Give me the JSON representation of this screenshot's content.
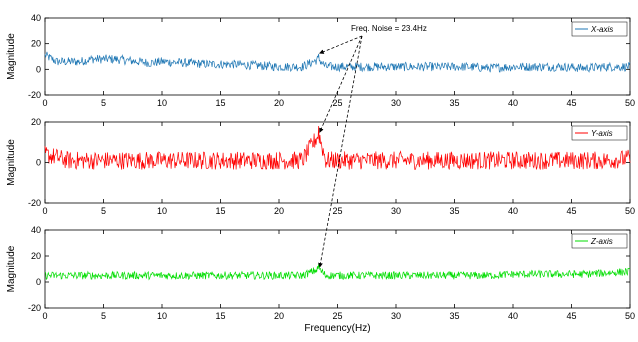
{
  "chart_data": [
    {
      "type": "line",
      "title": "",
      "xlabel": "",
      "ylabel": "Magnitude",
      "xlim": [
        0,
        50
      ],
      "ylim": [
        -20,
        40
      ],
      "xticks": [
        0,
        5,
        10,
        15,
        20,
        25,
        30,
        35,
        40,
        45,
        50
      ],
      "yticks": [
        -20,
        0,
        20,
        40
      ],
      "grid": false,
      "legend_position": "top-right",
      "series": [
        {
          "name": "X-axis",
          "color": "#1f77b4",
          "x": [
            0,
            1,
            2,
            3,
            4,
            5,
            6,
            7,
            8,
            9,
            10,
            12,
            14,
            16,
            18,
            20,
            22,
            23.4,
            24,
            26,
            28,
            30,
            32,
            34,
            36,
            38,
            40,
            42,
            44,
            46,
            48,
            50
          ],
          "y": [
            11,
            6,
            6,
            6,
            8,
            8,
            8,
            7,
            6,
            5,
            6,
            5,
            4,
            4,
            3,
            2,
            2,
            8,
            2,
            2,
            2,
            2,
            2,
            2,
            2,
            1,
            2,
            2,
            2,
            1,
            2,
            2
          ]
        }
      ]
    },
    {
      "type": "line",
      "title": "",
      "xlabel": "",
      "ylabel": "Magnitude",
      "xlim": [
        0,
        50
      ],
      "ylim": [
        -20,
        20
      ],
      "xticks": [
        0,
        5,
        10,
        15,
        20,
        25,
        30,
        35,
        40,
        45,
        50
      ],
      "yticks": [
        -20,
        0,
        20
      ],
      "grid": false,
      "legend_position": "top-right",
      "series": [
        {
          "name": "Y-axis",
          "color": "#ff0000",
          "x": [
            0,
            2,
            4,
            6,
            8,
            10,
            12,
            14,
            16,
            18,
            20,
            22,
            23.4,
            24,
            26,
            28,
            30,
            32,
            34,
            36,
            38,
            40,
            42,
            44,
            46,
            48,
            50
          ],
          "y": [
            4,
            1,
            1,
            1,
            1,
            1,
            1,
            1,
            1,
            1,
            1,
            1,
            14,
            1,
            1,
            1,
            1,
            1,
            1,
            1,
            1,
            1,
            1,
            1,
            1,
            1,
            2
          ]
        }
      ]
    },
    {
      "type": "line",
      "title": "",
      "xlabel": "Frequency(Hz)",
      "ylabel": "Magnitude",
      "xlim": [
        0,
        50
      ],
      "ylim": [
        -20,
        40
      ],
      "xticks": [
        0,
        5,
        10,
        15,
        20,
        25,
        30,
        35,
        40,
        45,
        50
      ],
      "yticks": [
        -20,
        0,
        20,
        40
      ],
      "grid": false,
      "legend_position": "top-right",
      "series": [
        {
          "name": "Z-axis",
          "color": "#00dd00",
          "x": [
            0,
            2,
            4,
            6,
            8,
            10,
            12,
            14,
            16,
            18,
            20,
            22,
            23.4,
            24,
            26,
            28,
            30,
            32,
            34,
            36,
            38,
            40,
            42,
            44,
            46,
            48,
            50
          ],
          "y": [
            5,
            5,
            5,
            5,
            5,
            5,
            5,
            5,
            5,
            5,
            5,
            5,
            10,
            5,
            5,
            5,
            5,
            5,
            5,
            5,
            5,
            6,
            6,
            6,
            6,
            7,
            8
          ]
        }
      ]
    }
  ],
  "annotation": {
    "text": "Freq. Noise = 23.4Hz",
    "x": 23.4
  }
}
